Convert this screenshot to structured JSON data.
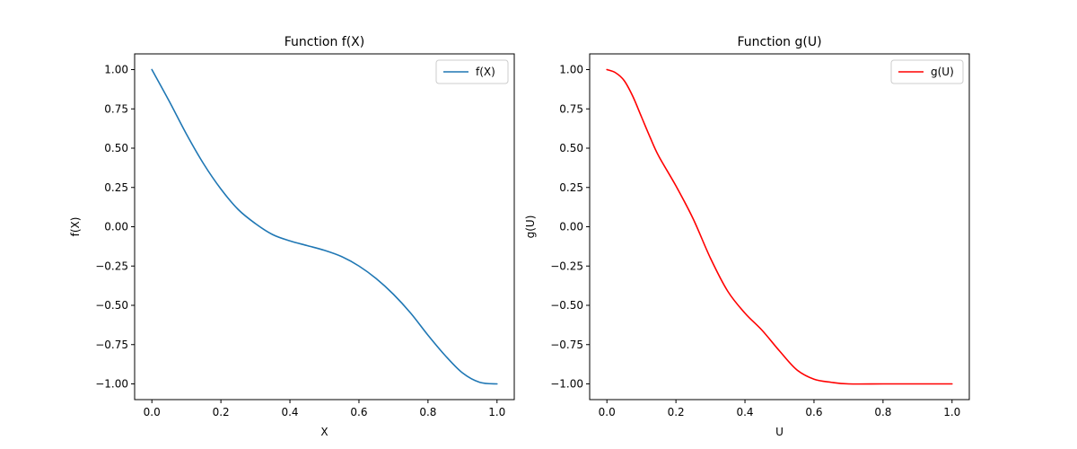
{
  "chart_data": [
    {
      "type": "line",
      "title": "Function f(X)",
      "xlabel": "X",
      "ylabel": "f(X)",
      "xlim": [
        -0.05,
        1.05
      ],
      "ylim": [
        -1.1,
        1.1
      ],
      "xticks": [
        0.0,
        0.2,
        0.4,
        0.6,
        0.8,
        1.0
      ],
      "xtick_labels": [
        "0.0",
        "0.2",
        "0.4",
        "0.6",
        "0.8",
        "1.0"
      ],
      "yticks": [
        1.0,
        0.75,
        0.5,
        0.25,
        0.0,
        -0.25,
        -0.5,
        -0.75,
        -1.0
      ],
      "ytick_labels": [
        "1.00",
        "0.75",
        "0.50",
        "0.25",
        "0.00",
        "−0.25",
        "−0.50",
        "−0.75",
        "−1.00"
      ],
      "grid": false,
      "legend_position": "top-right",
      "series": [
        {
          "name": "f(X)",
          "color": "#1f77b4",
          "x": [
            0.0,
            0.05,
            0.1,
            0.15,
            0.2,
            0.25,
            0.3,
            0.35,
            0.4,
            0.45,
            0.5,
            0.55,
            0.6,
            0.65,
            0.7,
            0.75,
            0.8,
            0.85,
            0.9,
            0.95,
            1.0
          ],
          "y": [
            1.0,
            0.8,
            0.59,
            0.4,
            0.24,
            0.11,
            0.02,
            -0.05,
            -0.09,
            -0.12,
            -0.15,
            -0.19,
            -0.25,
            -0.33,
            -0.43,
            -0.55,
            -0.69,
            -0.82,
            -0.93,
            -0.99,
            -1.0
          ]
        }
      ]
    },
    {
      "type": "line",
      "title": "Function g(U)",
      "xlabel": "U",
      "ylabel": "g(U)",
      "xlim": [
        -0.05,
        1.05
      ],
      "ylim": [
        -1.1,
        1.1
      ],
      "xticks": [
        0.0,
        0.2,
        0.4,
        0.6,
        0.8,
        1.0
      ],
      "xtick_labels": [
        "0.0",
        "0.2",
        "0.4",
        "0.6",
        "0.8",
        "1.0"
      ],
      "yticks": [
        1.0,
        0.75,
        0.5,
        0.25,
        0.0,
        -0.25,
        -0.5,
        -0.75,
        -1.0
      ],
      "ytick_labels": [
        "1.00",
        "0.75",
        "0.50",
        "0.25",
        "0.00",
        "−0.25",
        "−0.50",
        "−0.75",
        "−1.00"
      ],
      "grid": false,
      "legend_position": "top-right",
      "series": [
        {
          "name": "g(U)",
          "color": "#ff0000",
          "x": [
            0.0,
            0.025,
            0.05,
            0.075,
            0.1,
            0.125,
            0.15,
            0.2,
            0.25,
            0.3,
            0.35,
            0.4,
            0.45,
            0.5,
            0.55,
            0.6,
            0.65,
            0.7,
            0.8,
            0.9,
            1.0
          ],
          "y": [
            1.0,
            0.98,
            0.93,
            0.83,
            0.7,
            0.57,
            0.45,
            0.26,
            0.05,
            -0.2,
            -0.41,
            -0.55,
            -0.66,
            -0.79,
            -0.91,
            -0.97,
            -0.99,
            -1.0,
            -1.0,
            -1.0,
            -1.0
          ]
        }
      ]
    }
  ]
}
